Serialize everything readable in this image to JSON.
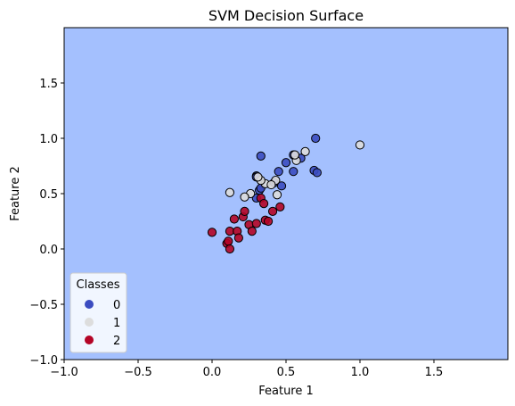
{
  "chart_data": {
    "type": "scatter",
    "title": "SVM Decision Surface",
    "xlabel": "Feature 1",
    "ylabel": "Feature 2",
    "xlim": [
      -1.0,
      2.0
    ],
    "ylim": [
      -1.0,
      2.0
    ],
    "xticks": [
      -1.0,
      -0.5,
      0.0,
      0.5,
      1.0,
      1.5
    ],
    "yticks": [
      -1.0,
      -0.5,
      0.0,
      0.5,
      1.0,
      1.5
    ],
    "xtick_labels": [
      "−1.0",
      "−0.5",
      "0.0",
      "0.5",
      "1.0",
      "1.5"
    ],
    "ytick_labels": [
      "−1.0",
      "−0.5",
      "0.0",
      "0.5",
      "1.0",
      "1.5"
    ],
    "background_color": "#a4c0fe",
    "grid": false,
    "legend": {
      "title": "Classes",
      "placement": "lower-left",
      "entries": [
        "0",
        "1",
        "2"
      ]
    },
    "series": [
      {
        "name": "0",
        "color": "#3b4cc0",
        "points": [
          [
            0.33,
            0.84
          ],
          [
            0.7,
            1.0
          ],
          [
            0.3,
            0.66
          ],
          [
            0.3,
            0.65
          ],
          [
            0.32,
            0.53
          ],
          [
            0.3,
            0.46
          ],
          [
            0.45,
            0.7
          ],
          [
            0.55,
            0.7
          ],
          [
            0.47,
            0.57
          ],
          [
            0.6,
            0.82
          ],
          [
            0.69,
            0.71
          ],
          [
            0.71,
            0.69
          ],
          [
            0.55,
            0.85
          ],
          [
            0.42,
            0.6
          ],
          [
            0.5,
            0.78
          ],
          [
            0.33,
            0.55
          ]
        ]
      },
      {
        "name": "1",
        "color": "#dddddd",
        "points": [
          [
            1.0,
            0.94
          ],
          [
            0.63,
            0.88
          ],
          [
            0.57,
            0.8
          ],
          [
            0.43,
            0.62
          ],
          [
            0.36,
            0.59
          ],
          [
            0.33,
            0.62
          ],
          [
            0.31,
            0.65
          ],
          [
            0.26,
            0.5
          ],
          [
            0.22,
            0.47
          ],
          [
            0.12,
            0.51
          ],
          [
            0.44,
            0.49
          ],
          [
            0.4,
            0.58
          ],
          [
            0.56,
            0.85
          ]
        ]
      },
      {
        "name": "2",
        "color": "#b40426",
        "points": [
          [
            0.0,
            0.15
          ],
          [
            0.1,
            0.05
          ],
          [
            0.11,
            0.07
          ],
          [
            0.12,
            0.0
          ],
          [
            0.12,
            0.16
          ],
          [
            0.15,
            0.27
          ],
          [
            0.17,
            0.16
          ],
          [
            0.18,
            0.1
          ],
          [
            0.21,
            0.29
          ],
          [
            0.22,
            0.34
          ],
          [
            0.25,
            0.22
          ],
          [
            0.27,
            0.16
          ],
          [
            0.3,
            0.23
          ],
          [
            0.33,
            0.46
          ],
          [
            0.35,
            0.41
          ],
          [
            0.36,
            0.26
          ],
          [
            0.38,
            0.25
          ],
          [
            0.41,
            0.34
          ],
          [
            0.46,
            0.38
          ]
        ]
      }
    ]
  }
}
